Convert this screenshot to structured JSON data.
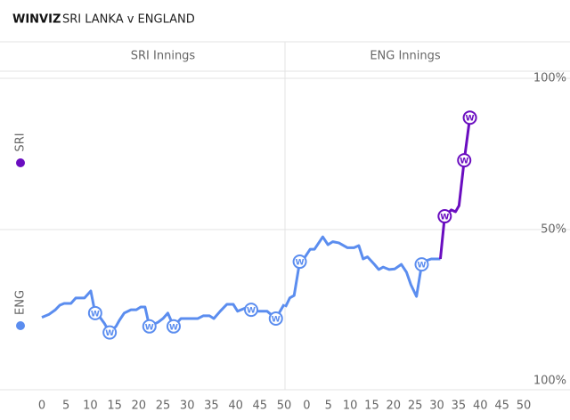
{
  "header": {
    "brand": "WINVIZ",
    "match": "SRI LANKA v ENGLAND"
  },
  "chart_data": [
    {
      "type": "line",
      "title": "SRI Innings",
      "wicket_label": "W",
      "x": [
        0,
        1.5,
        2.8,
        3.7,
        4.6,
        6,
        7,
        8.8,
        10.1,
        11,
        12,
        12.9,
        14,
        15.3,
        16,
        17,
        18.4,
        19.5,
        20.4,
        21.3,
        22.2,
        24,
        25,
        26,
        27.2,
        28.7,
        30.5,
        32.2,
        33.3,
        34.6,
        35.5,
        36.8,
        38.2,
        39.5,
        40.4,
        41.9,
        43.2,
        44.7,
        46.5,
        48.3,
        50
      ],
      "series": [
        {
          "name": "ENG",
          "color": "#5b8def",
          "values": [
            21,
            22,
            23.5,
            25,
            25.6,
            25.6,
            27.4,
            27.4,
            29.7,
            22.4,
            21,
            19,
            16,
            18,
            20,
            22.4,
            23.5,
            23.5,
            24.4,
            24.4,
            18,
            19.4,
            20.6,
            22.4,
            18,
            20.6,
            20.6,
            20.6,
            21.5,
            21.5,
            20.6,
            23,
            25.3,
            25.3,
            23,
            24,
            23.5,
            23,
            23,
            20.6,
            25.3
          ]
        }
      ],
      "wickets": [
        11,
        14,
        22.2,
        27.2,
        43.2,
        48.3
      ],
      "xlim": [
        0,
        50
      ],
      "xticks": [
        0,
        5,
        10,
        15,
        20,
        25,
        30,
        35,
        40,
        45,
        50
      ],
      "ylim": [
        0,
        100
      ]
    },
    {
      "type": "line",
      "title": "ENG Innings",
      "wicket_label": "W",
      "x": [
        -4.9,
        -3.9,
        -2.9,
        -1.6,
        -0.4,
        0.8,
        1.8,
        3.7,
        4.9,
        6,
        7.4,
        9.4,
        10.9,
        12,
        13,
        14,
        15.6,
        16.6,
        17.6,
        19,
        20.3,
        21.8,
        23,
        24,
        25.3,
        26.5,
        27.5,
        28.7,
        30.8,
        31.8,
        33.3,
        34.3,
        35.1,
        36.3,
        37.6
      ],
      "series": [
        {
          "color": "#5b8def",
          "values": [
            24.4,
            27.4,
            28.2,
            39.4,
            40.9,
            43.5,
            43.5,
            47.6,
            45,
            46,
            45.6,
            44,
            44,
            44.7,
            40.3,
            41,
            38.5,
            36.8,
            37.6,
            36.8,
            37,
            38.5,
            35.9,
            31.8,
            27.9,
            38.5,
            39.7,
            40.3,
            40.3,
            null,
            null,
            null,
            null,
            null,
            null
          ]
        },
        {
          "name": "SRI",
          "color": "#6a0dc0",
          "values": [
            null,
            null,
            null,
            null,
            null,
            null,
            null,
            null,
            null,
            null,
            null,
            null,
            null,
            null,
            null,
            null,
            null,
            null,
            null,
            null,
            null,
            null,
            null,
            null,
            null,
            null,
            null,
            null,
            40.3,
            54.4,
            56.5,
            55.9,
            57.9,
            72.9,
            87
          ]
        }
      ],
      "wickets": [
        -1.6,
        26.5,
        31.8,
        36.3,
        37.6
      ],
      "xlim": [
        -5,
        50
      ],
      "xticks": [
        0,
        5,
        10,
        15,
        20,
        25,
        30,
        35,
        40,
        45,
        50
      ],
      "ylim": [
        0,
        100
      ],
      "yticks": [
        {
          "value": 100,
          "label": "100%"
        },
        {
          "value": 50,
          "label": "50%"
        },
        {
          "value": 0,
          "label": "100%"
        }
      ]
    }
  ]
}
